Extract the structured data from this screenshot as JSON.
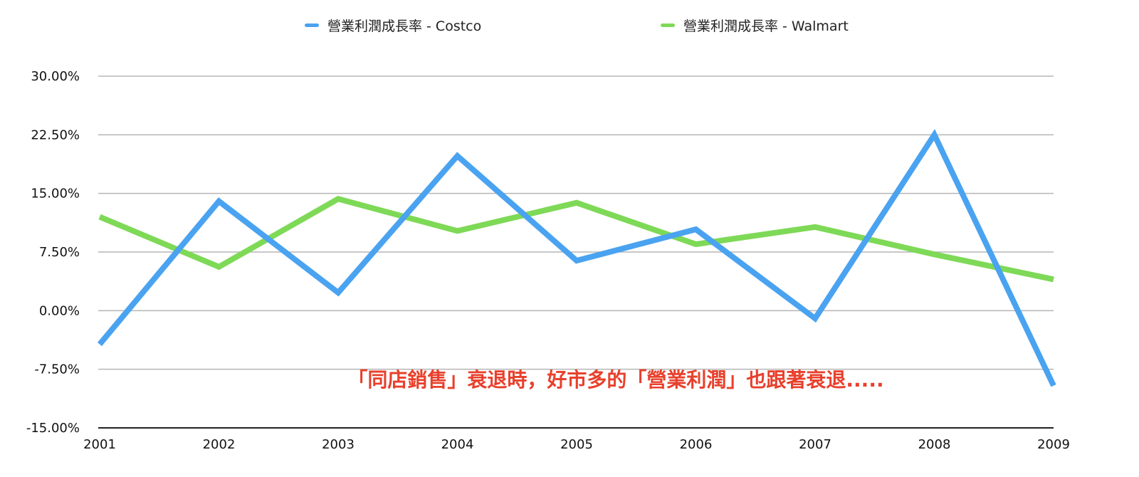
{
  "chart_data": {
    "type": "line",
    "x": [
      "2001",
      "2002",
      "2003",
      "2004",
      "2005",
      "2006",
      "2007",
      "2008",
      "2009"
    ],
    "series": [
      {
        "name": "營業利潤成長率 - Costco",
        "color": "#4aa3f0",
        "values": [
          -4.3,
          14.0,
          2.3,
          19.8,
          6.4,
          10.4,
          -1.0,
          22.5,
          -9.6
        ]
      },
      {
        "name": "營業利潤成長率 - Walmart",
        "color": "#7ed957",
        "values": [
          12.0,
          5.6,
          14.3,
          10.2,
          13.8,
          8.5,
          10.7,
          7.2,
          4.0
        ]
      }
    ],
    "ylim": [
      -15,
      30
    ],
    "yticks": [
      "30.00%",
      "22.50%",
      "15.00%",
      "7.50%",
      "0.00%",
      "-7.50%",
      "-15.00%"
    ],
    "ytick_values": [
      30,
      22.5,
      15,
      7.5,
      0,
      -7.5,
      -15
    ],
    "grid": true,
    "legend_position": "top-center",
    "annotation": "「同店銷售」衰退時，好市多的「營業利潤」也跟著衰退....."
  }
}
